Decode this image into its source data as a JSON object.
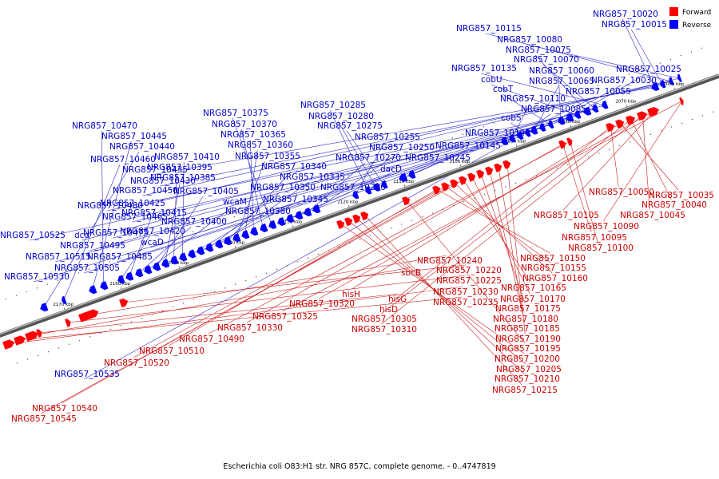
{
  "caption": "Escherichia coli O83:H1 str. NRG 857C, complete genome. - 0..4747819",
  "legend": [
    {
      "label": "Forward",
      "color": "#ff0000"
    },
    {
      "label": "Reverse",
      "color": "#0000ff"
    }
  ],
  "colors": {
    "forward": "#ff0000",
    "reverse": "#0000ff",
    "forward_text": "#cc0000",
    "reverse_text": "#0000cc"
  },
  "ticks": [
    "2060 kbp",
    "2070 kbp",
    "2080 kbp",
    "2090 kbp",
    "2100 kbp",
    "2110 kbp",
    "2120 kbp",
    "2130 kbp",
    "2140 kbp",
    "2150 kbp",
    "2160 kbp",
    "2170 kbp"
  ],
  "reverse_labels": [
    "NRG857_10020",
    "NRG857_10015",
    "NRG857_10115",
    "NRG857_10080",
    "NRG857_10075",
    "NRG857_10070",
    "NRG857_10135",
    "NRG857_10060",
    "NRG857_10025",
    "cobU",
    "NRG857_10065",
    "NRG857_10030",
    "cobT",
    "NRG857_10055",
    "NRG857_10110",
    "NRG857_10085",
    "cobS",
    "NRG857_10140",
    "NRG857_10145",
    "NRG857_10285",
    "NRG857_10280",
    "NRG857_10275",
    "NRG857_10255",
    "NRG857_10250",
    "NRG857_10270",
    "NRG857_10245",
    "dacD",
    "NRG857_10290",
    "NRG857_10375",
    "NRG857_10370",
    "NRG857_10365",
    "NRG857_10360",
    "NRG857_10355",
    "NRG857_10340",
    "NRG857_10335",
    "NRG857_10350",
    "NRG857_10345",
    "NRG857_10380",
    "NRG857_10410",
    "NRG857_10395",
    "NRG857_10385",
    "NRG857_10405",
    "wcaM",
    "NRG857_10400",
    "NRG857_10415",
    "NRG857_10420",
    "NRG857_10470",
    "NRG857_10445",
    "NRG857_10440",
    "NRG857_10460",
    "NRG857_10435",
    "NRG857_10430",
    "NRG857_10450",
    "NRG857_10425",
    "NRG857_10480",
    "NRG857_10465",
    "NRG857_10475",
    "wcaD",
    "dcd",
    "NRG857_10495",
    "NRG857_10525",
    "NRG857_10515",
    "NRG857_10485",
    "NRG857_10505",
    "NRG857_10530",
    "NRG857_10535"
  ],
  "forward_labels": [
    "NRG857_10050",
    "NRG857_10035",
    "NRG857_10040",
    "NRG857_10045",
    "NRG857_10105",
    "NRG857_10090",
    "NRG857_10095",
    "NRG857_10100",
    "NRG857_10150",
    "NRG857_10155",
    "NRG857_10160",
    "NRG857_10165",
    "NRG857_10170",
    "NRG857_10175",
    "NRG857_10180",
    "NRG857_10185",
    "NRG857_10190",
    "NRG857_10195",
    "NRG857_10200",
    "NRG857_10205",
    "NRG857_10210",
    "NRG857_10215",
    "NRG857_10240",
    "NRG857_10220",
    "NRG857_10225",
    "NRG857_10230",
    "NRG857_10235",
    "sbcB",
    "hisG",
    "hisD",
    "hisH",
    "NRG857_10305",
    "NRG857_10310",
    "NRG857_10320",
    "NRG857_10325",
    "NRG857_10330",
    "NRG857_10490",
    "NRG857_10510",
    "NRG857_10520",
    "NRG857_10540",
    "NRG857_10545"
  ]
}
